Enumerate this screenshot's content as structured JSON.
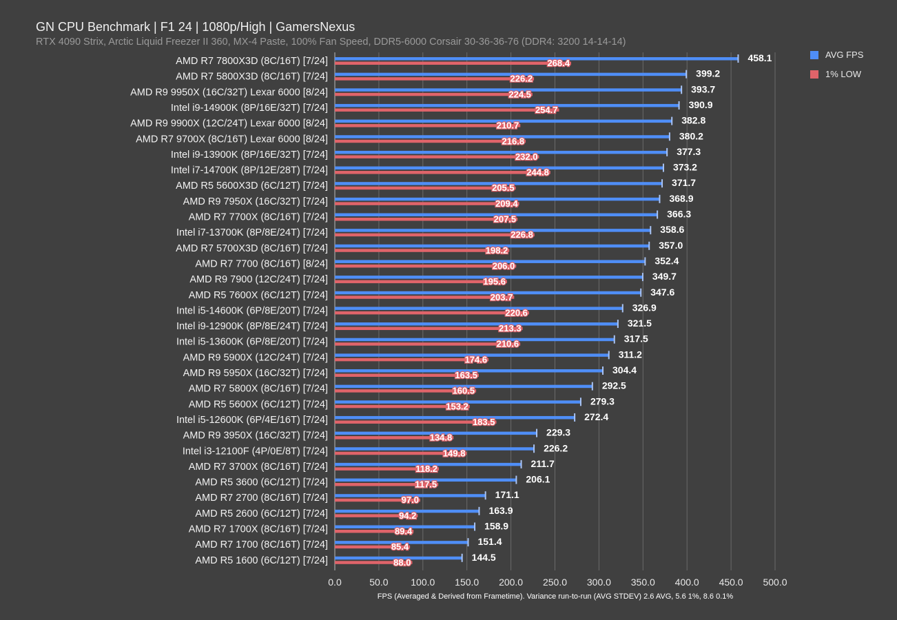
{
  "chart_data": {
    "type": "bar",
    "orientation": "horizontal",
    "title": "GN CPU Benchmark | F1 24 | 1080p/High | GamersNexus",
    "subtitle": "RTX 4090 Strix, Arctic Liquid Freezer II 360, MX-4 Paste, 100% Fan Speed, DDR5-6000 Corsair 30-36-36-76 (DDR4: 3200 14-14-14)",
    "xlabel": "FPS (Averaged & Derived from Frametime). Variance run-to-run (AVG STDEV) 2.6 AVG, 5.6 1%, 8.6 0.1%",
    "xlim": [
      0,
      500
    ],
    "xticks": [
      "0.0",
      "50.0",
      "100.0",
      "150.0",
      "200.0",
      "250.0",
      "300.0",
      "350.0",
      "400.0",
      "450.0",
      "500.0"
    ],
    "grid": true,
    "legend_position": "top-right",
    "categories": [
      "AMD R7 7800X3D (8C/16T) [7/24]",
      "AMD R7 5800X3D (8C/16T) [7/24]",
      "AMD R9 9950X (16C/32T) Lexar 6000 [8/24]",
      "Intel i9-14900K (8P/16E/32T) [7/24]",
      "AMD R9 9900X (12C/24T) Lexar 6000 [8/24]",
      "AMD R7 9700X (8C/16T) Lexar 6000 [8/24]",
      "Intel i9-13900K (8P/16E/32T) [7/24]",
      "Intel i7-14700K (8P/12E/28T) [7/24]",
      "AMD R5 5600X3D (6C/12T) [7/24]",
      "AMD R9 7950X (16C/32T) [7/24]",
      "AMD R7 7700X (8C/16T) [7/24]",
      "Intel i7-13700K (8P/8E/24T) [7/24]",
      "AMD R7 5700X3D (8C/16T) [7/24]",
      "AMD R7 7700 (8C/16T) [8/24]",
      "AMD R9 7900 (12C/24T) [7/24]",
      "AMD R5 7600X (6C/12T) [7/24]",
      "Intel i5-14600K (6P/8E/20T) [7/24]",
      "Intel i9-12900K (8P/8E/24T) [7/24]",
      "Intel i5-13600K (6P/8E/20T) [7/24]",
      "AMD R9 5900X (12C/24T) [7/24]",
      "AMD R9 5950X (16C/32T) [7/24]",
      "AMD R7 5800X (8C/16T) [7/24]",
      "AMD R5 5600X (6C/12T) [7/24]",
      "Intel i5-12600K (6P/4E/16T) [7/24]",
      "AMD R9 3950X (16C/32T) [7/24]",
      "Intel i3-12100F (4P/0E/8T) [7/24]",
      "AMD R7 3700X (8C/16T) [7/24]",
      "AMD R5 3600 (6C/12T) [7/24]",
      "AMD R7 2700 (8C/16T) [7/24]",
      "AMD R5 2600 (6C/12T) [7/24]",
      "AMD R7 1700X (8C/16T) [7/24]",
      "AMD R7 1700 (8C/16T) [7/24]",
      "AMD R5 1600 (6C/12T) [7/24]"
    ],
    "series": [
      {
        "name": "AVG FPS",
        "color": "#4f8ef7",
        "values": [
          458.1,
          399.2,
          393.7,
          390.9,
          382.8,
          380.2,
          377.3,
          373.2,
          371.7,
          368.9,
          366.3,
          358.6,
          357.0,
          352.4,
          349.7,
          347.6,
          326.9,
          321.5,
          317.5,
          311.2,
          304.4,
          292.5,
          279.3,
          272.4,
          229.3,
          226.2,
          211.7,
          206.1,
          171.1,
          163.9,
          158.9,
          151.4,
          144.5
        ]
      },
      {
        "name": "1% LOW",
        "color": "#e0646a",
        "values": [
          268.4,
          226.2,
          224.5,
          254.7,
          210.7,
          216.8,
          232.0,
          244.8,
          205.5,
          209.4,
          207.5,
          226.8,
          198.2,
          206.0,
          195.6,
          203.7,
          220.6,
          213.3,
          210.6,
          174.6,
          163.5,
          160.5,
          153.2,
          183.5,
          134.8,
          149.8,
          118.2,
          117.5,
          97.0,
          94.2,
          89.4,
          85.4,
          88.0
        ]
      }
    ]
  }
}
